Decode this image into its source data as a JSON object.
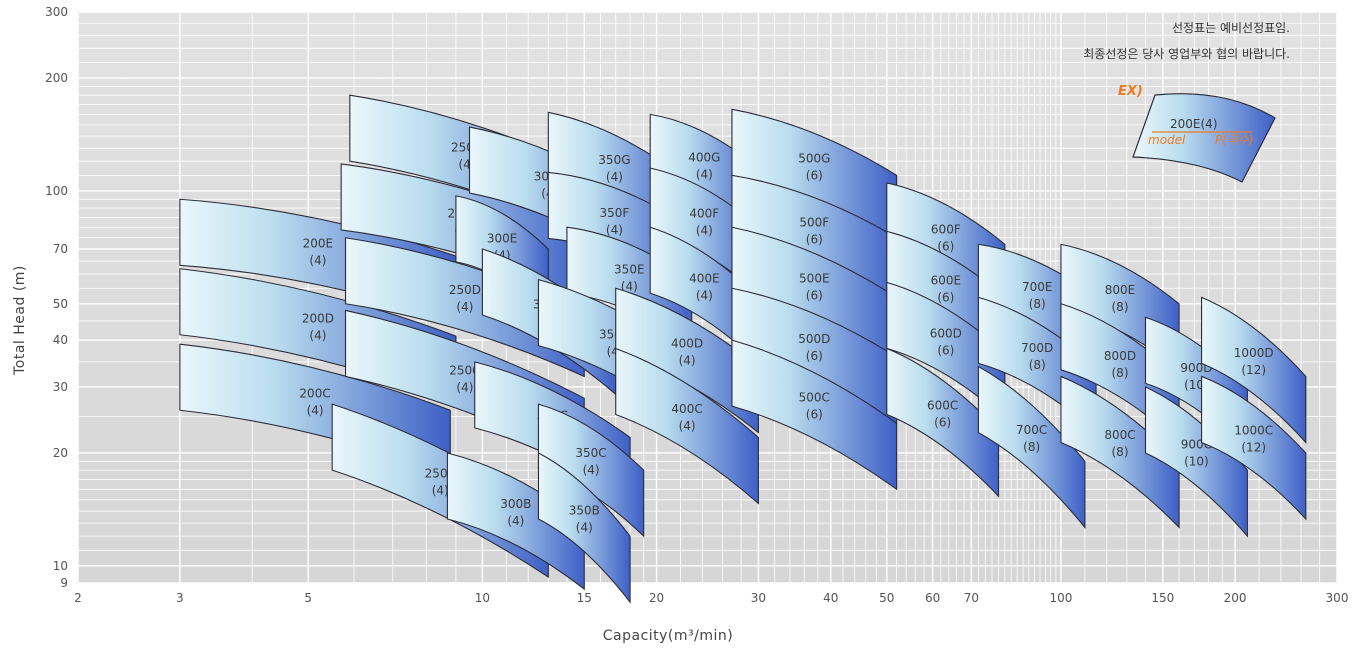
{
  "chart_data": {
    "type": "scatter",
    "xlabel": "Capacity(m³/min)",
    "ylabel": "Total Head (m)",
    "xscale": "log",
    "yscale": "log",
    "xlim": [
      2,
      300
    ],
    "ylim": [
      9,
      300
    ],
    "x_ticks": [
      2,
      3,
      5,
      10,
      15,
      20,
      30,
      40,
      50,
      60,
      70,
      100,
      150,
      200,
      300
    ],
    "y_ticks": [
      9,
      10,
      20,
      30,
      40,
      50,
      70,
      100,
      200,
      300
    ],
    "grid": true,
    "notes": [
      "선정표는 예비선정표임.",
      "최종선정은 당사 영업부와 협의 바랍니다."
    ],
    "example": {
      "tag": "EX)",
      "name": "200E",
      "poles": "(4)",
      "model_label": "model",
      "poles_label": "P(극수)"
    },
    "tiles": [
      {
        "name": "200E",
        "poles": "(4)",
        "x1": 3,
        "x2": 9,
        "h1": 95,
        "h2": 67
      },
      {
        "name": "200D",
        "poles": "(4)",
        "x1": 3,
        "x2": 9,
        "h1": 62,
        "h2": 41
      },
      {
        "name": "200C",
        "poles": "(4)",
        "x1": 3,
        "x2": 8.8,
        "h1": 39,
        "h2": 26
      },
      {
        "name": "250G",
        "poles": "(4)",
        "x1": 5.9,
        "x2": 15,
        "h1": 180,
        "h2": 115
      },
      {
        "name": "250E",
        "poles": "(4)",
        "x1": 5.7,
        "x2": 15,
        "h1": 118,
        "h2": 78
      },
      {
        "name": "250D",
        "poles": "(4)",
        "x1": 5.8,
        "x2": 15,
        "h1": 75,
        "h2": 48
      },
      {
        "name": "250C",
        "poles": "(4)",
        "x1": 5.8,
        "x2": 15,
        "h1": 48,
        "h2": 28
      },
      {
        "name": "250B",
        "poles": "(4)",
        "x1": 5.5,
        "x2": 13,
        "h1": 27,
        "h2": 14
      },
      {
        "name": "300G",
        "poles": "(4)",
        "x1": 9.5,
        "x2": 18,
        "h1": 148,
        "h2": 98
      },
      {
        "name": "300E",
        "poles": "(4)",
        "x1": 9,
        "x2": 13,
        "h1": 97,
        "h2": 70
      },
      {
        "name": "300D",
        "poles": "(4)",
        "x1": 10,
        "x2": 17,
        "h1": 70,
        "h2": 43
      },
      {
        "name": "300C",
        "poles": "(4)",
        "x1": 9.7,
        "x2": 18,
        "h1": 35,
        "h2": 22
      },
      {
        "name": "300B",
        "poles": "(4)",
        "x1": 8.7,
        "x2": 15,
        "h1": 20,
        "h2": 13
      },
      {
        "name": "350G",
        "poles": "(4)",
        "x1": 13,
        "x2": 22,
        "h1": 162,
        "h2": 110
      },
      {
        "name": "350F",
        "poles": "(4)",
        "x1": 13,
        "x2": 22,
        "h1": 112,
        "h2": 83
      },
      {
        "name": "350E",
        "poles": "(4)",
        "x1": 14,
        "x2": 23,
        "h1": 80,
        "h2": 58
      },
      {
        "name": "350D",
        "poles": "(4)",
        "x1": 12.5,
        "x2": 23,
        "h1": 58,
        "h2": 36
      },
      {
        "name": "350C",
        "poles": "(4)",
        "x1": 12.5,
        "x2": 19,
        "h1": 27,
        "h2": 18
      },
      {
        "name": "350B",
        "poles": "(4)",
        "x1": 12.5,
        "x2": 18,
        "h1": 20,
        "h2": 12
      },
      {
        "name": "400G",
        "poles": "(4)",
        "x1": 19.5,
        "x2": 30,
        "h1": 160,
        "h2": 115
      },
      {
        "name": "400F",
        "poles": "(4)",
        "x1": 19.5,
        "x2": 30,
        "h1": 115,
        "h2": 80
      },
      {
        "name": "400E",
        "poles": "(4)",
        "x1": 19.5,
        "x2": 30,
        "h1": 80,
        "h2": 52
      },
      {
        "name": "400D",
        "poles": "(4)",
        "x1": 17,
        "x2": 30,
        "h1": 55,
        "h2": 34
      },
      {
        "name": "400C",
        "poles": "(4)",
        "x1": 17,
        "x2": 30,
        "h1": 38,
        "h2": 22
      },
      {
        "name": "500G",
        "poles": "(6)",
        "x1": 27,
        "x2": 52,
        "h1": 165,
        "h2": 110
      },
      {
        "name": "500F",
        "poles": "(6)",
        "x1": 27,
        "x2": 52,
        "h1": 110,
        "h2": 75
      },
      {
        "name": "500E",
        "poles": "(6)",
        "x1": 27,
        "x2": 52,
        "h1": 80,
        "h2": 52
      },
      {
        "name": "500D",
        "poles": "(6)",
        "x1": 27,
        "x2": 52,
        "h1": 55,
        "h2": 36
      },
      {
        "name": "500C",
        "poles": "(6)",
        "x1": 27,
        "x2": 52,
        "h1": 40,
        "h2": 24
      },
      {
        "name": "600F",
        "poles": "(6)",
        "x1": 50,
        "x2": 80,
        "h1": 105,
        "h2": 72
      },
      {
        "name": "600E",
        "poles": "(6)",
        "x1": 50,
        "x2": 80,
        "h1": 78,
        "h2": 52
      },
      {
        "name": "600D",
        "poles": "(6)",
        "x1": 50,
        "x2": 80,
        "h1": 57,
        "h2": 37
      },
      {
        "name": "600C",
        "poles": "(6)",
        "x1": 50,
        "x2": 78,
        "h1": 38,
        "h2": 23
      },
      {
        "name": "700E",
        "poles": "(8)",
        "x1": 72,
        "x2": 115,
        "h1": 72,
        "h2": 52
      },
      {
        "name": "700D",
        "poles": "(8)",
        "x1": 72,
        "x2": 115,
        "h1": 52,
        "h2": 34
      },
      {
        "name": "700C",
        "poles": "(8)",
        "x1": 72,
        "x2": 110,
        "h1": 34,
        "h2": 19
      },
      {
        "name": "800E",
        "poles": "(8)",
        "x1": 100,
        "x2": 160,
        "h1": 72,
        "h2": 50
      },
      {
        "name": "800D",
        "poles": "(8)",
        "x1": 100,
        "x2": 160,
        "h1": 50,
        "h2": 32
      },
      {
        "name": "800C",
        "poles": "(8)",
        "x1": 100,
        "x2": 160,
        "h1": 32,
        "h2": 19
      },
      {
        "name": "900D",
        "poles": "(10)",
        "x1": 140,
        "x2": 210,
        "h1": 46,
        "h2": 30
      },
      {
        "name": "900C",
        "poles": "(10)",
        "x1": 140,
        "x2": 210,
        "h1": 30,
        "h2": 18
      },
      {
        "name": "1000D",
        "poles": "(12)",
        "x1": 175,
        "x2": 265,
        "h1": 52,
        "h2": 32
      },
      {
        "name": "1000C",
        "poles": "(12)",
        "x1": 175,
        "x2": 265,
        "h1": 32,
        "h2": 20
      }
    ]
  }
}
